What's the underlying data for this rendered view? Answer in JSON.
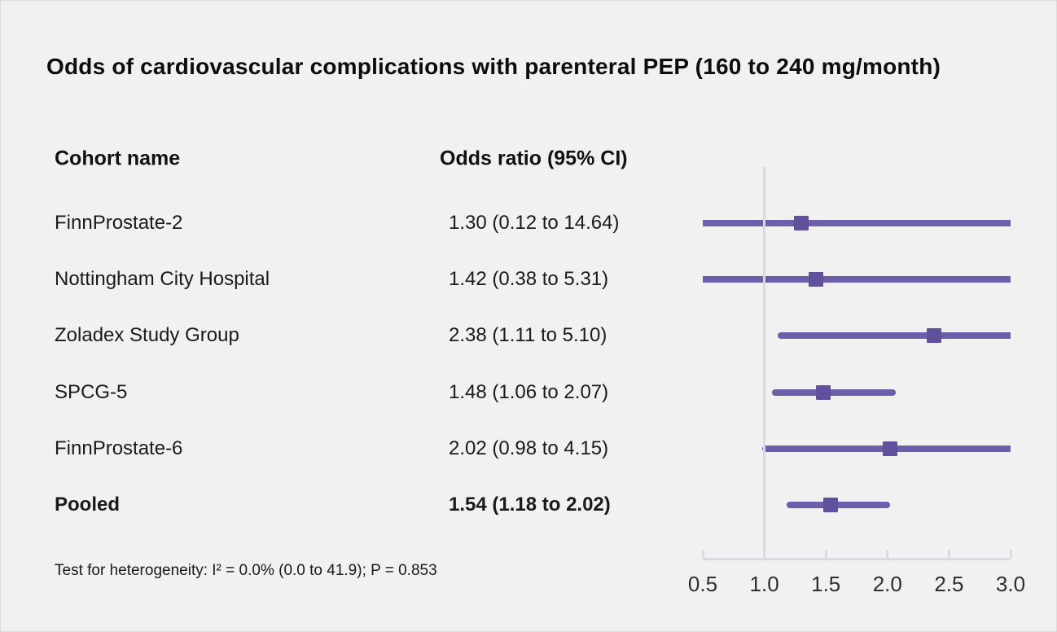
{
  "title": "Odds of cardiovascular complications with parenteral PEP (160 to 240 mg/month)",
  "columns": {
    "cohort": "Cohort name",
    "odds_ratio": "Odds ratio (95% CI)"
  },
  "footnote": "Test for heterogeneity: I² = 0.0% (0.0 to 41.9); P = 0.853",
  "colors": {
    "background": "#f2f1f1",
    "ci_line": "#6c5fa9",
    "marker": "#61519d",
    "axis": "#d8dbe2",
    "text": "#1a1a1a"
  },
  "chart_data": {
    "type": "forest",
    "title": "Odds of cardiovascular complications with parenteral PEP (160 to 240 mg/month)",
    "xlabel": "Odds ratio",
    "x_axis": {
      "min": 0.5,
      "max": 3.0,
      "ticks": [
        0.5,
        1.0,
        1.5,
        2.0,
        2.5,
        3.0
      ],
      "tick_labels": [
        "0.5",
        "1.0",
        "1.5",
        "2.0",
        "2.5",
        "3.0"
      ],
      "reference_line": 1.0
    },
    "rows": [
      {
        "label": "FinnProstate-2",
        "display": "1.30 (0.12 to 14.64)",
        "or": 1.3,
        "lo": 0.12,
        "hi": 14.64,
        "pooled": false
      },
      {
        "label": "Nottingham City Hospital",
        "display": "1.42 (0.38 to 5.31)",
        "or": 1.42,
        "lo": 0.38,
        "hi": 5.31,
        "pooled": false
      },
      {
        "label": "Zoladex Study Group",
        "display": "2.38 (1.11 to 5.10)",
        "or": 2.38,
        "lo": 1.11,
        "hi": 5.1,
        "pooled": false
      },
      {
        "label": "SPCG-5",
        "display": "1.48 (1.06 to 2.07)",
        "or": 1.48,
        "lo": 1.06,
        "hi": 2.07,
        "pooled": false
      },
      {
        "label": "FinnProstate-6",
        "display": "2.02 (0.98 to 4.15)",
        "or": 2.02,
        "lo": 0.98,
        "hi": 4.15,
        "pooled": false
      },
      {
        "label": "Pooled",
        "display": "1.54 (1.18 to 2.02)",
        "or": 1.54,
        "lo": 1.18,
        "hi": 2.02,
        "pooled": true
      }
    ]
  }
}
